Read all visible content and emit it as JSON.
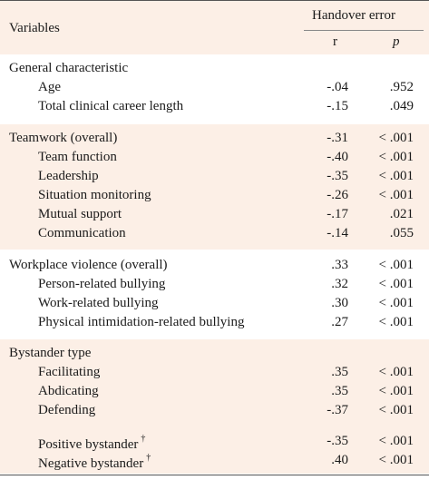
{
  "header": {
    "variables": "Variables",
    "outcome": "Handover error",
    "r": "r",
    "p": "p"
  },
  "sections": [
    {
      "rows": [
        {
          "label": "General characteristic"
        },
        {
          "label": "Age",
          "r": "-.04",
          "p": ".952"
        },
        {
          "label": "Total clinical career length",
          "r": "-.15",
          "p": ".049"
        }
      ]
    },
    {
      "rows": [
        {
          "label": "Teamwork (overall)",
          "r": "-.31",
          "p": "< .001"
        },
        {
          "label": "Team function",
          "r": "-.40",
          "p": "< .001"
        },
        {
          "label": "Leadership",
          "r": "-.35",
          "p": "< .001"
        },
        {
          "label": "Situation monitoring",
          "r": "-.26",
          "p": "< .001"
        },
        {
          "label": "Mutual support",
          "r": "-.17",
          "p": ".021"
        },
        {
          "label": "Communication",
          "r": "-.14",
          "p": ".055"
        }
      ]
    },
    {
      "rows": [
        {
          "label": "Workplace violence (overall)",
          "r": ".33",
          "p": "< .001"
        },
        {
          "label": "Person-related bullying",
          "r": ".32",
          "p": "< .001"
        },
        {
          "label": "Work-related bullying",
          "r": ".30",
          "p": "< .001"
        },
        {
          "label": "Physical intimidation-related bullying",
          "r": ".27",
          "p": "< .001"
        }
      ]
    },
    {
      "rows": [
        {
          "label": "Bystander type"
        },
        {
          "label": "Facilitating",
          "r": ".35",
          "p": "< .001"
        },
        {
          "label": "Abdicating",
          "r": ".35",
          "p": "< .001"
        },
        {
          "label": "Defending",
          "r": "-.37",
          "p": "< .001"
        },
        {
          "label": "Positive bystander",
          "note": "†",
          "r": "-.35",
          "p": "< .001"
        },
        {
          "label": "Negative bystander",
          "note": "†",
          "r": ".40",
          "p": "< .001"
        }
      ]
    }
  ]
}
